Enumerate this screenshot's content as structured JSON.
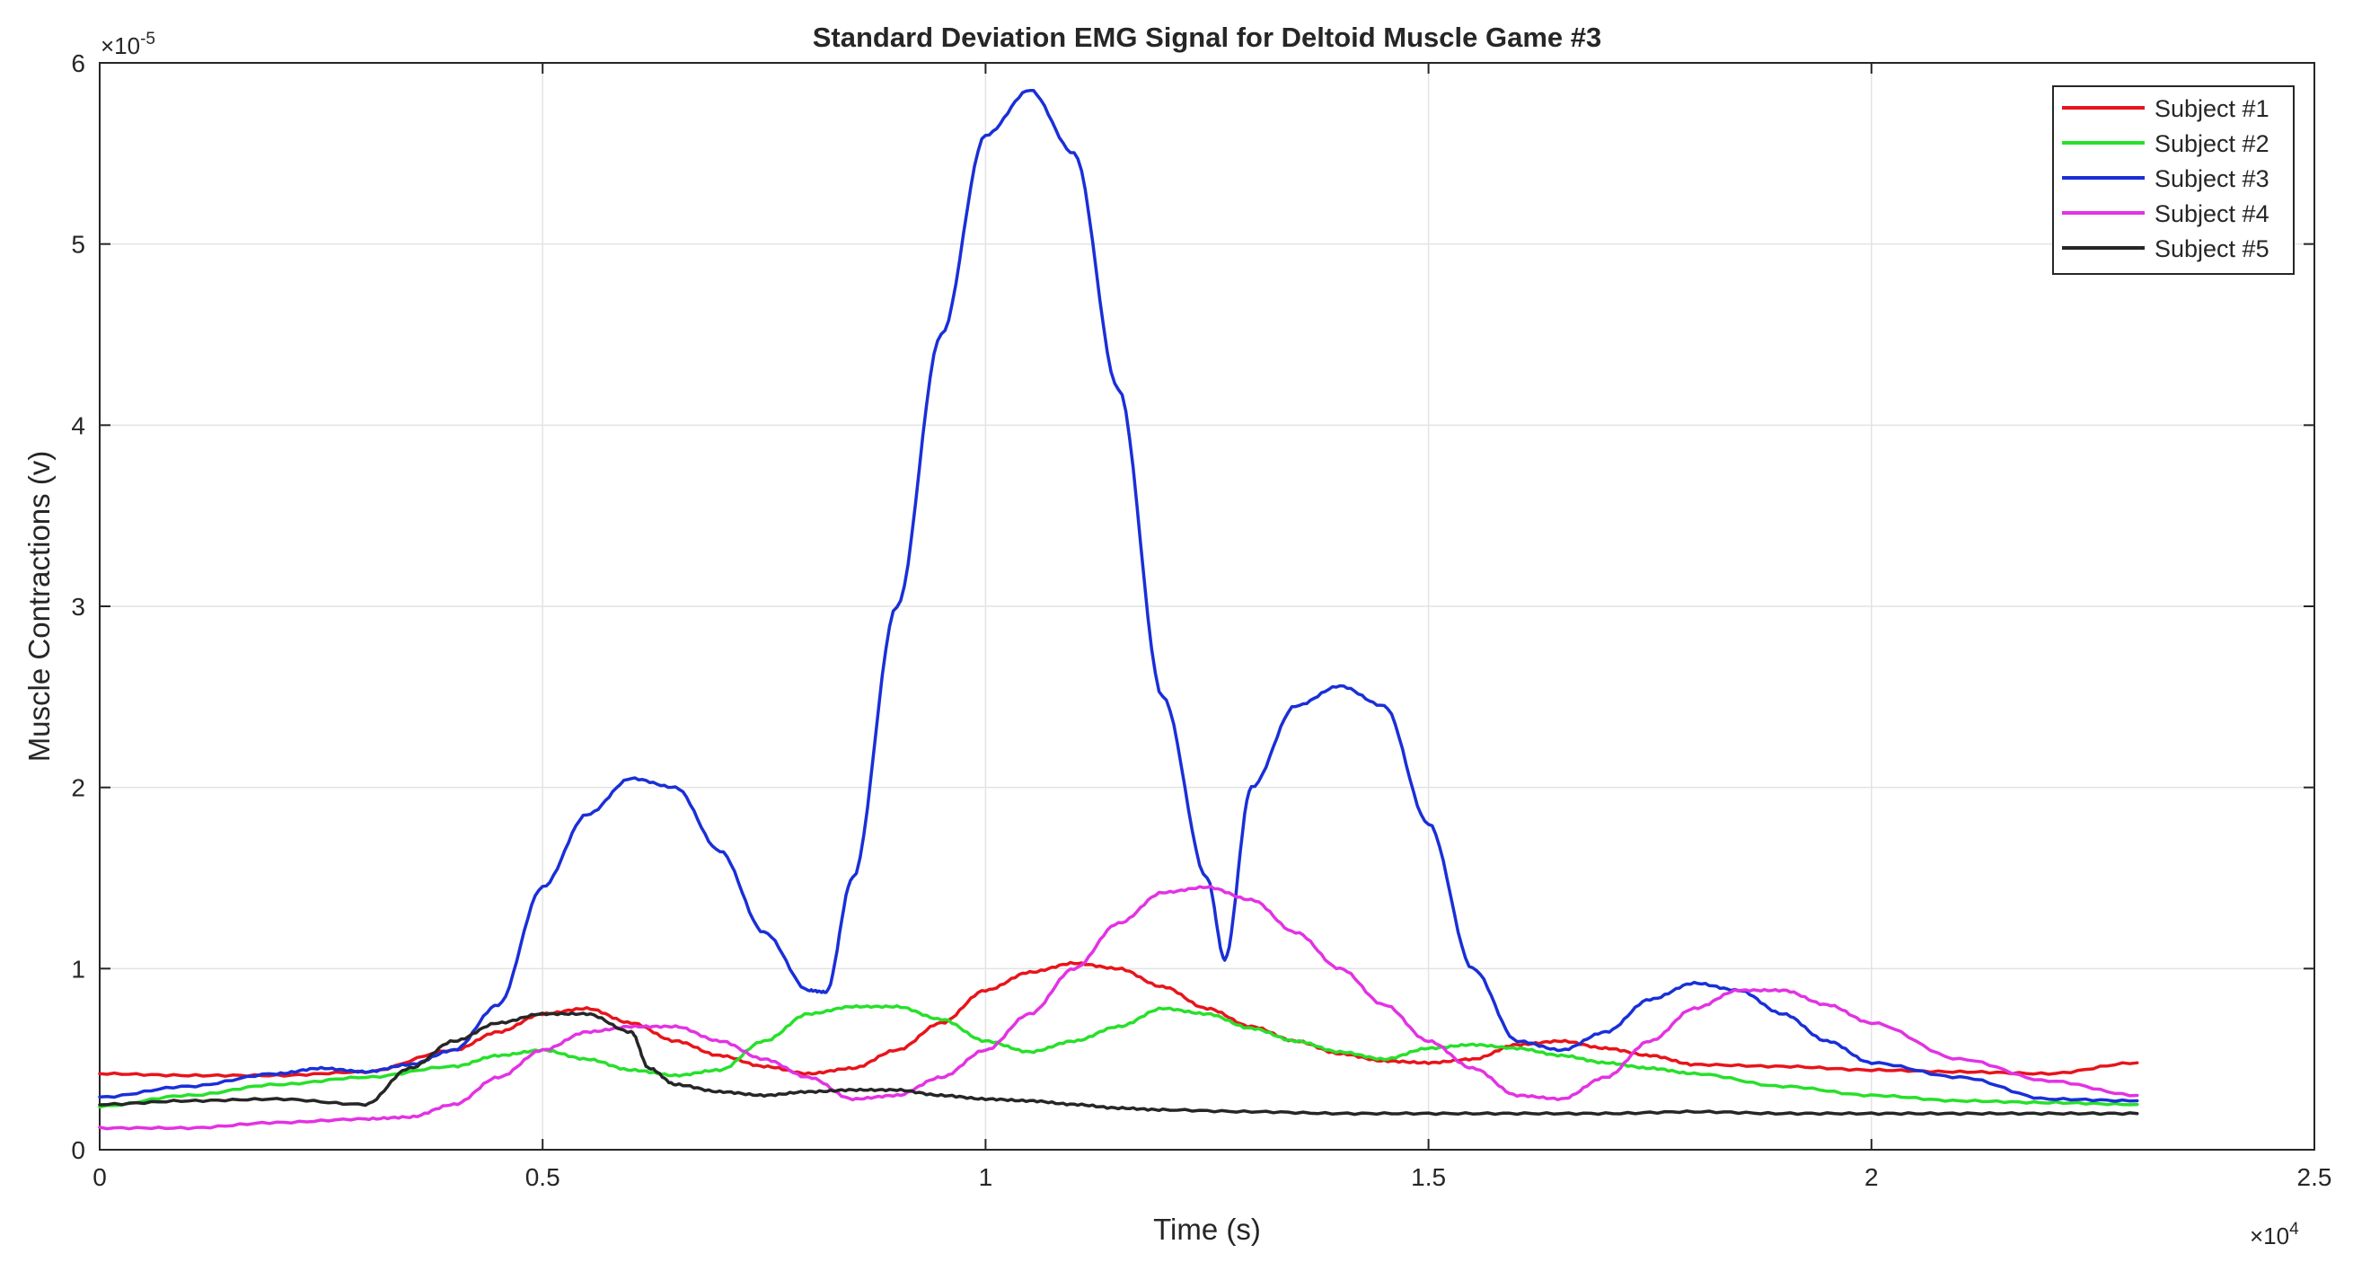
{
  "chart_data": {
    "type": "line",
    "title": "Standard Deviation EMG Signal for Deltoid Muscle Game #3",
    "xlabel": "Time (s)",
    "ylabel": "Muscle Contractions (v)",
    "x_exponent_label": "×10",
    "x_exponent_power": "4",
    "y_exponent_label": "×10",
    "y_exponent_power": "-5",
    "xlim": [
      0,
      25000
    ],
    "ylim": [
      0,
      6e-05
    ],
    "xticks": [
      0,
      5000,
      10000,
      15000,
      20000,
      25000
    ],
    "xtick_labels": [
      "0",
      "0.5",
      "1",
      "1.5",
      "2",
      "2.5"
    ],
    "yticks": [
      0,
      1e-05,
      2e-05,
      3e-05,
      4e-05,
      5e-05,
      6e-05
    ],
    "ytick_labels": [
      "0",
      "1",
      "2",
      "3",
      "4",
      "5",
      "6"
    ],
    "grid": true,
    "legend_position": "top-right",
    "series": [
      {
        "name": "Subject #1",
        "color": "#e8141b",
        "x": [
          0,
          1000,
          2000,
          3000,
          4000,
          4500,
          5000,
          5500,
          6000,
          6500,
          7000,
          7500,
          8000,
          8500,
          9000,
          9500,
          10000,
          10500,
          11000,
          11500,
          12000,
          12500,
          13000,
          13500,
          14000,
          14500,
          15000,
          15500,
          16000,
          16500,
          17000,
          17500,
          18000,
          19000,
          20000,
          21000,
          22000,
          23000
        ],
        "y": [
          4.2e-06,
          4.1e-06,
          4.1e-06,
          4.3e-06,
          5.5e-06,
          6.5e-06,
          7.5e-06,
          7.8e-06,
          7e-06,
          6e-06,
          5.2e-06,
          4.6e-06,
          4.2e-06,
          4.5e-06,
          5.5e-06,
          7e-06,
          8.8e-06,
          9.8e-06,
          1.03e-05,
          1e-05,
          9e-06,
          7.8e-06,
          6.8e-06,
          6e-06,
          5.3e-06,
          4.9e-06,
          4.8e-06,
          5e-06,
          5.8e-06,
          6e-06,
          5.6e-06,
          5.2e-06,
          4.7e-06,
          4.6e-06,
          4.4e-06,
          4.3e-06,
          4.2e-06,
          4.8e-06
        ]
      },
      {
        "name": "Subject #2",
        "color": "#27e02a",
        "x": [
          0,
          1000,
          2000,
          3000,
          4000,
          4500,
          5000,
          5500,
          6000,
          6500,
          7000,
          7500,
          8000,
          8500,
          9000,
          9500,
          10000,
          10500,
          11000,
          11500,
          12000,
          12500,
          13000,
          13500,
          14000,
          14500,
          15000,
          15500,
          16000,
          16500,
          17000,
          17500,
          18000,
          19000,
          20000,
          21000,
          22000,
          23000
        ],
        "y": [
          2.4e-06,
          3e-06,
          3.6e-06,
          4e-06,
          4.6e-06,
          5.2e-06,
          5.5e-06,
          5e-06,
          4.4e-06,
          4.1e-06,
          4.4e-06,
          6e-06,
          7.5e-06,
          7.9e-06,
          7.9e-06,
          7.2e-06,
          6e-06,
          5.4e-06,
          6e-06,
          6.8e-06,
          7.8e-06,
          7.5e-06,
          6.7e-06,
          6e-06,
          5.4e-06,
          5e-06,
          5.6e-06,
          5.8e-06,
          5.6e-06,
          5.2e-06,
          4.8e-06,
          4.5e-06,
          4.2e-06,
          3.5e-06,
          3e-06,
          2.7e-06,
          2.6e-06,
          2.5e-06
        ]
      },
      {
        "name": "Subject #3",
        "color": "#1a2fd8",
        "x": [
          0,
          1000,
          2000,
          2500,
          3000,
          3500,
          4000,
          4500,
          5000,
          5500,
          6000,
          6500,
          7000,
          7500,
          8000,
          8200,
          8500,
          9000,
          9500,
          10000,
          10500,
          11000,
          11500,
          12000,
          12500,
          12700,
          13000,
          13500,
          14000,
          14500,
          15000,
          15500,
          16000,
          16500,
          17000,
          17500,
          18000,
          18500,
          19000,
          19500,
          20000,
          21000,
          22000,
          23000
        ],
        "y": [
          2.9e-06,
          3.5e-06,
          4.2e-06,
          4.5e-06,
          4.3e-06,
          4.7e-06,
          5.5e-06,
          8e-06,
          1.45e-05,
          1.85e-05,
          2.05e-05,
          2e-05,
          1.65e-05,
          1.2e-05,
          8.8e-06,
          8.7e-06,
          1.5e-05,
          3e-05,
          4.5e-05,
          5.6e-05,
          5.85e-05,
          5.5e-05,
          4.2e-05,
          2.5e-05,
          1.5e-05,
          1.05e-05,
          2e-05,
          2.45e-05,
          2.56e-05,
          2.45e-05,
          1.8e-05,
          1e-05,
          6e-06,
          5.5e-06,
          6.5e-06,
          8.3e-06,
          9.2e-06,
          8.8e-06,
          7.5e-06,
          6e-06,
          4.8e-06,
          4e-06,
          2.8e-06,
          2.7e-06
        ]
      },
      {
        "name": "Subject #4",
        "color": "#e332e3",
        "x": [
          0,
          1000,
          2000,
          3000,
          3500,
          4000,
          4500,
          5000,
          5500,
          6000,
          6500,
          7000,
          7500,
          8000,
          8500,
          9000,
          9500,
          10000,
          10500,
          11000,
          11500,
          12000,
          12500,
          13000,
          13500,
          14000,
          14500,
          15000,
          15500,
          16000,
          16500,
          17000,
          17500,
          18000,
          18500,
          19000,
          19500,
          20000,
          21000,
          22000,
          23000
        ],
        "y": [
          1.2e-06,
          1.2e-06,
          1.5e-06,
          1.7e-06,
          1.8e-06,
          2.5e-06,
          4e-06,
          5.5e-06,
          6.5e-06,
          6.8e-06,
          6.8e-06,
          6e-06,
          5e-06,
          4e-06,
          2.8e-06,
          3e-06,
          4e-06,
          5.5e-06,
          7.5e-06,
          1e-05,
          1.25e-05,
          1.42e-05,
          1.45e-05,
          1.38e-05,
          1.2e-05,
          1e-05,
          8e-06,
          6e-06,
          4.5e-06,
          3e-06,
          2.8e-06,
          4e-06,
          6e-06,
          7.8e-06,
          8.8e-06,
          8.8e-06,
          8e-06,
          7e-06,
          5e-06,
          3.8e-06,
          3e-06
        ]
      },
      {
        "name": "Subject #5",
        "color": "#262626",
        "x": [
          0,
          1000,
          2000,
          3000,
          3500,
          4000,
          4500,
          5000,
          5500,
          6000,
          6200,
          6500,
          7000,
          7500,
          8000,
          8500,
          9000,
          9500,
          10000,
          10500,
          11000,
          11500,
          12000,
          13000,
          14000,
          15000,
          16000,
          17000,
          18000,
          19000,
          20000,
          21000,
          22000,
          23000
        ],
        "y": [
          2.5e-06,
          2.7e-06,
          2.8e-06,
          2.5e-06,
          4.5e-06,
          6e-06,
          7e-06,
          7.5e-06,
          7.5e-06,
          6.5e-06,
          4.5e-06,
          3.6e-06,
          3.2e-06,
          3e-06,
          3.2e-06,
          3.3e-06,
          3.3e-06,
          3e-06,
          2.8e-06,
          2.7e-06,
          2.5e-06,
          2.3e-06,
          2.2e-06,
          2.1e-06,
          2e-06,
          2e-06,
          2e-06,
          2e-06,
          2.1e-06,
          2e-06,
          2e-06,
          2e-06,
          2e-06,
          2e-06
        ]
      }
    ]
  }
}
